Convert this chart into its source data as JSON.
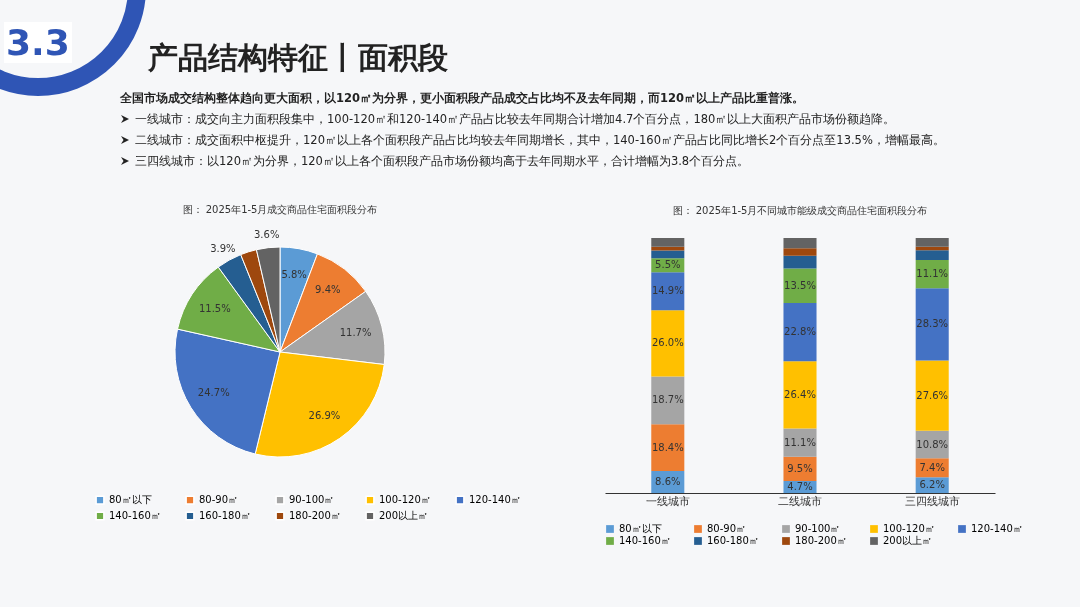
{
  "chart_data": [
    {
      "type": "other",
      "title": "产品结构特征丨面积段",
      "annotations": [
        "3.3",
        "全国市场成交结构整体趋向更大面积，以120㎡为分界，更小面积段产品成交占比均不及去年同期，而120㎡以上产品比重普涨。",
        "一线城市：成交向主力面积段集中，100-120㎡和120-140㎡产品占比较去年同期合计增加4.7个百分点，180㎡以上大面积产品市场份额趋降。",
        "二线城市：成交面积中枢提升，120㎡以上各个面积段产品占比均较去年同期增长，其中，140-160㎡产品占比同比增长2个百分点至13.5%，增幅最高。",
        "三四线城市：以120㎡为分界，120㎡以上各个面积段产品市场份额均高于去年同期水平，合计增幅为3.8个百分点。"
      ]
    },
    {
      "type": "pie",
      "title": "图：  2025年1-5月成交商品住宅面积段分布",
      "categories": [
        "80㎡以下",
        "80-90㎡",
        "90-100㎡",
        "100-120㎡",
        "120-140㎡",
        "140-160㎡",
        "160-180㎡",
        "180-200㎡",
        "200以上㎡"
      ],
      "values": [
        5.8,
        9.4,
        11.7,
        26.9,
        24.7,
        11.5,
        3.9,
        2.5,
        3.6
      ],
      "value_labels": [
        "5.8%",
        "9.4%",
        "11.7%",
        "26.9%",
        "24.7%",
        "11.5%",
        "3.9%",
        null,
        "3.6%"
      ],
      "colors": [
        "#5b9bd5",
        "#ed7d31",
        "#a5a5a5",
        "#ffc000",
        "#4472c4",
        "#70ad47",
        "#255e91",
        "#9e480e",
        "#636363"
      ],
      "legend": "bottom"
    },
    {
      "type": "bar",
      "title": "图：  2025年1-5月不同城市能级成交商品住宅面积段分布",
      "categories": [
        "一线城市",
        "二线城市",
        "三四线城市"
      ],
      "stacked": true,
      "ylim": [
        0,
        100
      ],
      "tick_labels": "x",
      "legend": "bottom",
      "series": [
        {
          "name": "80㎡以下",
          "color": "#5b9bd5",
          "values": [
            8.6,
            4.7,
            6.2
          ],
          "value_labels": [
            "8.6%",
            "4.7%",
            "6.2%"
          ]
        },
        {
          "name": "80-90㎡",
          "color": "#ed7d31",
          "values": [
            18.4,
            9.5,
            7.4
          ],
          "value_labels": [
            "18.4%",
            "9.5%",
            "7.4%"
          ]
        },
        {
          "name": "90-100㎡",
          "color": "#a5a5a5",
          "values": [
            18.7,
            11.1,
            10.8
          ],
          "value_labels": [
            "18.7%",
            "11.1%",
            "10.8%"
          ]
        },
        {
          "name": "100-120㎡",
          "color": "#ffc000",
          "values": [
            26.0,
            26.4,
            27.6
          ],
          "value_labels": [
            "26.0%",
            "26.4%",
            "27.6%"
          ]
        },
        {
          "name": "120-140㎡",
          "color": "#4472c4",
          "values": [
            14.9,
            22.8,
            28.3
          ],
          "value_labels": [
            "14.9%",
            "22.8%",
            "28.3%"
          ]
        },
        {
          "name": "140-160㎡",
          "color": "#70ad47",
          "values": [
            5.5,
            13.5,
            11.1
          ],
          "value_labels": [
            "5.5%",
            "13.5%",
            "11.1%"
          ]
        },
        {
          "name": "160-180㎡",
          "color": "#255e91",
          "values": [
            3.0,
            5.0,
            3.8
          ],
          "value_labels": [
            null,
            null,
            null
          ]
        },
        {
          "name": "180-200㎡",
          "color": "#9e480e",
          "values": [
            1.5,
            3.0,
            1.4
          ],
          "value_labels": [
            null,
            null,
            null
          ]
        },
        {
          "name": "200以上㎡",
          "color": "#636363",
          "values": [
            3.4,
            4.0,
            3.4
          ],
          "value_labels": [
            null,
            null,
            null
          ]
        }
      ]
    }
  ]
}
